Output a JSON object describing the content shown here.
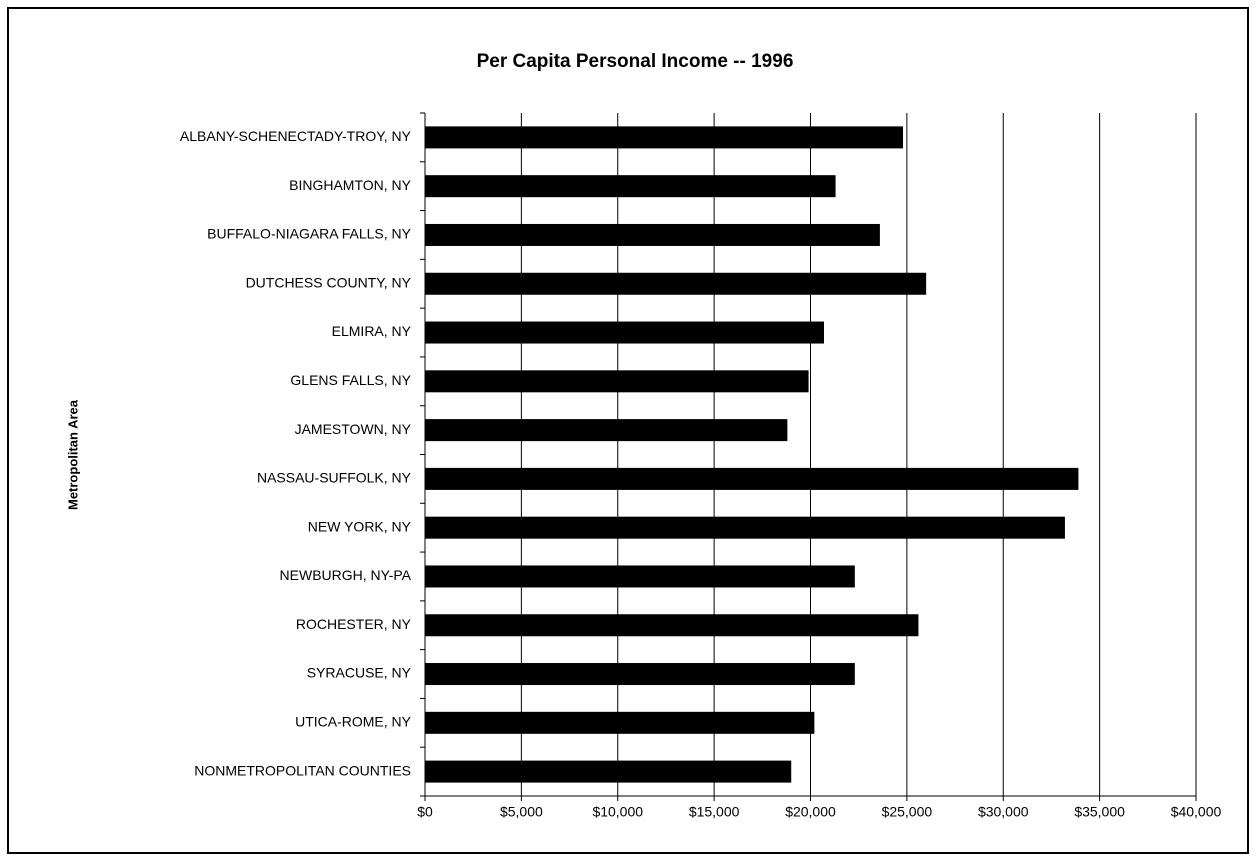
{
  "chart_data": {
    "type": "barh",
    "title": "Per Capita Personal Income -- 1996",
    "ylabel": "Metropolitan Area",
    "categories": [
      "ALBANY-SCHENECTADY-TROY, NY",
      "BINGHAMTON, NY",
      "BUFFALO-NIAGARA FALLS, NY",
      "DUTCHESS COUNTY, NY",
      "ELMIRA, NY",
      "GLENS FALLS, NY",
      "JAMESTOWN, NY",
      "NASSAU-SUFFOLK, NY",
      "NEW YORK, NY",
      "NEWBURGH, NY-PA",
      "ROCHESTER, NY",
      "SYRACUSE, NY",
      "UTICA-ROME, NY",
      "NONMETROPOLITAN COUNTIES"
    ],
    "values": [
      24800,
      21300,
      23600,
      26000,
      20700,
      19900,
      18800,
      33900,
      33200,
      22300,
      25600,
      22300,
      20200,
      19000
    ],
    "color": "#000000",
    "xlim": [
      0,
      40000
    ],
    "xticks": [
      {
        "value": 0,
        "label": "$0"
      },
      {
        "value": 5000,
        "label": "$5,000"
      },
      {
        "value": 10000,
        "label": "$10,000"
      },
      {
        "value": 15000,
        "label": "$15,000"
      },
      {
        "value": 20000,
        "label": "$20,000"
      },
      {
        "value": 25000,
        "label": "$25,000"
      },
      {
        "value": 30000,
        "label": "$30,000"
      },
      {
        "value": 35000,
        "label": "$35,000"
      },
      {
        "value": 40000,
        "label": "$40,000"
      }
    ],
    "grid": true
  }
}
